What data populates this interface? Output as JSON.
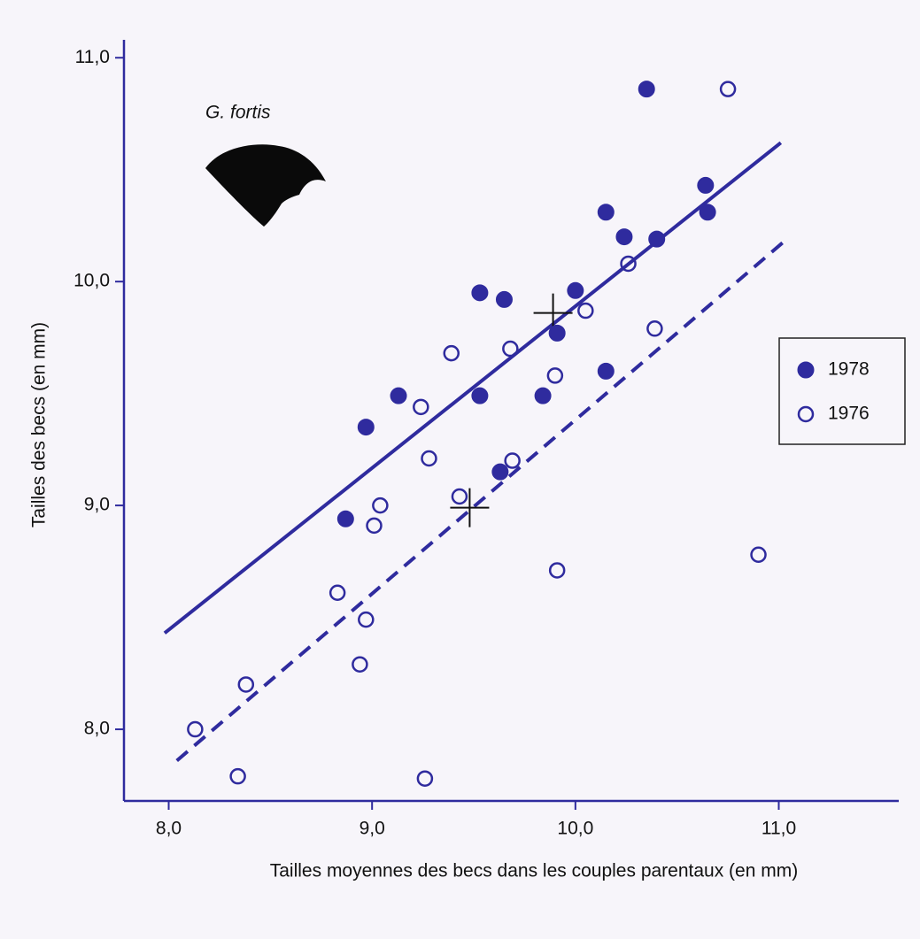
{
  "chart_data": {
    "type": "scatter",
    "x_label": "Tailles moyennes des becs dans les couples parentaux (en mm)",
    "y_label": "Tailles des becs (en mm)",
    "annotation": "G. fortis",
    "xlim": [
      7.78,
      11.59
    ],
    "ylim": [
      7.68,
      11.08
    ],
    "xticks": [
      {
        "value": 8,
        "label": "8,0"
      },
      {
        "value": 9,
        "label": "9,0"
      },
      {
        "value": 10,
        "label": "10,0"
      },
      {
        "value": 11,
        "label": "11,0"
      }
    ],
    "yticks": [
      {
        "value": 8,
        "label": "8,0"
      },
      {
        "value": 9,
        "label": "9,0"
      },
      {
        "value": 10,
        "label": "10,0"
      },
      {
        "value": 11,
        "label": "11,0"
      }
    ],
    "legend": "right",
    "series": [
      {
        "name": "1978",
        "color": "#2f2b9e",
        "marker": "filled",
        "dashed": false,
        "x": [
          10.35,
          10.64,
          10.65,
          10.15,
          10.24,
          10.4,
          10.0,
          9.53,
          9.65,
          9.91,
          10.15,
          9.84,
          9.13,
          9.53,
          8.97,
          9.63,
          8.87
        ],
        "y": [
          10.86,
          10.43,
          10.31,
          10.31,
          10.2,
          10.19,
          9.96,
          9.95,
          9.92,
          9.77,
          9.6,
          9.49,
          9.49,
          9.49,
          9.35,
          9.15,
          8.94
        ],
        "fit": {
          "x": [
            7.98,
            11.01
          ],
          "y": [
            8.43,
            10.62
          ]
        },
        "mean": {
          "x": 9.89,
          "y": 9.86
        }
      },
      {
        "name": "1976",
        "color": "#2f2b9e",
        "marker": "open",
        "dashed": true,
        "x": [
          10.75,
          10.26,
          10.05,
          10.39,
          9.68,
          9.39,
          9.9,
          9.24,
          9.28,
          9.69,
          9.43,
          9.04,
          9.01,
          10.9,
          9.91,
          8.83,
          8.97,
          8.94,
          8.38,
          8.13,
          8.34,
          9.26
        ],
        "y": [
          10.86,
          10.08,
          9.87,
          9.79,
          9.7,
          9.68,
          9.58,
          9.44,
          9.21,
          9.2,
          9.04,
          9.0,
          8.91,
          8.78,
          8.71,
          8.61,
          8.49,
          8.29,
          8.2,
          8.0,
          7.79,
          7.78
        ],
        "fit": {
          "x": [
            8.04,
            11.04
          ],
          "y": [
            7.86,
            10.19
          ]
        },
        "mean": {
          "x": 9.48,
          "y": 8.99
        }
      }
    ]
  }
}
